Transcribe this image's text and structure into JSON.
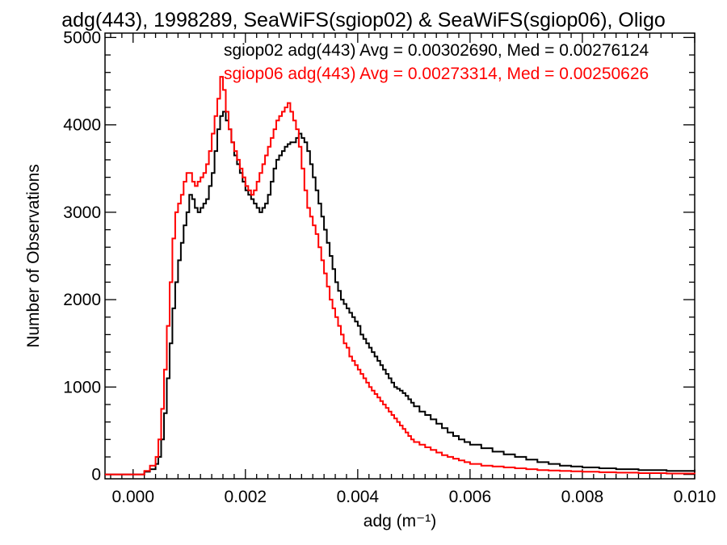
{
  "chart_data": {
    "type": "line",
    "title": "adg(443), 1998289, SeaWiFS(sgiop02) & SeaWiFS(sgiop06), Oligo",
    "xlabel": "adg (m⁻¹)",
    "ylabel": "Number of Observations",
    "xlim": [
      -0.0005,
      0.01
    ],
    "ylim": [
      -50,
      5050
    ],
    "xticks": [
      0.0,
      0.002,
      0.004,
      0.006,
      0.008,
      0.01
    ],
    "xtick_labels": [
      "0.000",
      "0.002",
      "0.004",
      "0.006",
      "0.008",
      "0.010"
    ],
    "yticks": [
      0,
      1000,
      2000,
      3000,
      4000,
      5000
    ],
    "ytick_labels": [
      "0",
      "1000",
      "2000",
      "3000",
      "4000",
      "5000"
    ],
    "grid": false,
    "legend_placement": "top-right",
    "series": [
      {
        "legend": "sgiop02 adg(443) Avg = 0.00302690, Med = 0.00276124",
        "color": "#000000",
        "step": true,
        "x": [
          -0.0005,
          0.0,
          0.0002,
          0.0003,
          0.0004,
          0.00045,
          0.0005,
          0.00055,
          0.0006,
          0.00065,
          0.0007,
          0.00075,
          0.0008,
          0.00085,
          0.0009,
          0.00095,
          0.001,
          0.00105,
          0.0011,
          0.00115,
          0.0012,
          0.00125,
          0.0013,
          0.00135,
          0.0014,
          0.00145,
          0.0015,
          0.00155,
          0.0016,
          0.00165,
          0.0017,
          0.00175,
          0.0018,
          0.00185,
          0.0019,
          0.00195,
          0.002,
          0.00205,
          0.0021,
          0.00215,
          0.0022,
          0.00225,
          0.0023,
          0.00235,
          0.0024,
          0.00245,
          0.0025,
          0.00255,
          0.0026,
          0.00265,
          0.0027,
          0.00275,
          0.0028,
          0.00285,
          0.0029,
          0.00295,
          0.003,
          0.00305,
          0.0031,
          0.00315,
          0.0032,
          0.00325,
          0.0033,
          0.00335,
          0.0034,
          0.00345,
          0.0035,
          0.00355,
          0.0036,
          0.00365,
          0.0037,
          0.00375,
          0.0038,
          0.00385,
          0.0039,
          0.00395,
          0.004,
          0.00405,
          0.0041,
          0.00415,
          0.0042,
          0.00425,
          0.0043,
          0.00435,
          0.0044,
          0.00445,
          0.0045,
          0.00455,
          0.0046,
          0.00465,
          0.0047,
          0.00475,
          0.0048,
          0.00485,
          0.0049,
          0.00495,
          0.005,
          0.0051,
          0.0052,
          0.0053,
          0.0054,
          0.0055,
          0.0056,
          0.0057,
          0.0058,
          0.0059,
          0.006,
          0.0062,
          0.0064,
          0.0066,
          0.0068,
          0.007,
          0.0072,
          0.0074,
          0.0076,
          0.0078,
          0.008,
          0.0083,
          0.0086,
          0.009,
          0.0095,
          0.01
        ],
        "y": [
          0,
          0,
          30,
          60,
          120,
          200,
          400,
          700,
          1100,
          1500,
          1900,
          2200,
          2450,
          2650,
          2850,
          3000,
          3200,
          3150,
          3050,
          3000,
          3050,
          3100,
          3150,
          3300,
          3450,
          3700,
          3950,
          4100,
          4150,
          4050,
          3950,
          3800,
          3650,
          3550,
          3450,
          3350,
          3250,
          3200,
          3150,
          3100,
          3050,
          3000,
          3050,
          3100,
          3200,
          3350,
          3500,
          3600,
          3650,
          3700,
          3750,
          3780,
          3800,
          3800,
          3850,
          3900,
          3850,
          3800,
          3700,
          3550,
          3400,
          3250,
          3100,
          2950,
          2800,
          2650,
          2500,
          2350,
          2200,
          2100,
          2000,
          1950,
          1900,
          1850,
          1800,
          1750,
          1700,
          1600,
          1550,
          1500,
          1450,
          1400,
          1350,
          1300,
          1250,
          1200,
          1150,
          1100,
          1050,
          1000,
          980,
          960,
          930,
          900,
          860,
          820,
          780,
          720,
          680,
          630,
          580,
          530,
          480,
          440,
          400,
          370,
          340,
          300,
          260,
          230,
          200,
          170,
          140,
          120,
          100,
          90,
          80,
          70,
          60,
          50,
          40,
          30
        ]
      },
      {
        "legend": "sgiop06 adg(443) Avg = 0.00273314, Med = 0.00250626",
        "color": "#ff0000",
        "step": true,
        "x": [
          -0.0005,
          0.0,
          0.0002,
          0.0003,
          0.0004,
          0.00045,
          0.0005,
          0.00055,
          0.0006,
          0.00065,
          0.0007,
          0.00075,
          0.0008,
          0.00085,
          0.0009,
          0.00095,
          0.001,
          0.00105,
          0.0011,
          0.00115,
          0.0012,
          0.00125,
          0.0013,
          0.00135,
          0.0014,
          0.00145,
          0.0015,
          0.00155,
          0.0016,
          0.00165,
          0.0017,
          0.00175,
          0.0018,
          0.00185,
          0.0019,
          0.00195,
          0.002,
          0.00205,
          0.0021,
          0.00215,
          0.0022,
          0.00225,
          0.0023,
          0.00235,
          0.0024,
          0.00245,
          0.0025,
          0.00255,
          0.0026,
          0.00265,
          0.0027,
          0.00275,
          0.0028,
          0.00285,
          0.0029,
          0.00295,
          0.003,
          0.00305,
          0.0031,
          0.00315,
          0.0032,
          0.00325,
          0.0033,
          0.00335,
          0.0034,
          0.00345,
          0.0035,
          0.00355,
          0.0036,
          0.00365,
          0.0037,
          0.00375,
          0.0038,
          0.00385,
          0.0039,
          0.00395,
          0.004,
          0.00405,
          0.0041,
          0.00415,
          0.0042,
          0.00425,
          0.0043,
          0.00435,
          0.0044,
          0.00445,
          0.0045,
          0.00455,
          0.0046,
          0.00465,
          0.0047,
          0.00475,
          0.0048,
          0.00485,
          0.0049,
          0.00495,
          0.005,
          0.0051,
          0.0052,
          0.0053,
          0.0054,
          0.0055,
          0.0056,
          0.0057,
          0.0058,
          0.0059,
          0.006,
          0.0062,
          0.0064,
          0.0066,
          0.0068,
          0.007,
          0.0072,
          0.0074,
          0.0076,
          0.0078,
          0.008,
          0.0083,
          0.0086,
          0.009,
          0.0095,
          0.01
        ],
        "y": [
          0,
          0,
          40,
          100,
          200,
          400,
          750,
          1200,
          1700,
          2200,
          2700,
          3000,
          3100,
          3200,
          3350,
          3450,
          3450,
          3350,
          3300,
          3350,
          3400,
          3450,
          3550,
          3700,
          3900,
          4100,
          4300,
          4550,
          4400,
          4150,
          3950,
          3800,
          3700,
          3600,
          3500,
          3400,
          3300,
          3250,
          3200,
          3250,
          3350,
          3450,
          3550,
          3650,
          3750,
          3850,
          3950,
          4050,
          4100,
          4150,
          4200,
          4250,
          4150,
          4050,
          3950,
          3750,
          3500,
          3250,
          3050,
          2950,
          2850,
          2750,
          2600,
          2450,
          2300,
          2150,
          2000,
          1900,
          1800,
          1700,
          1600,
          1500,
          1450,
          1350,
          1300,
          1250,
          1200,
          1150,
          1100,
          1050,
          1000,
          960,
          920,
          880,
          840,
          800,
          760,
          720,
          680,
          640,
          600,
          560,
          520,
          480,
          440,
          400,
          370,
          340,
          310,
          280,
          250,
          220,
          200,
          180,
          160,
          140,
          120,
          100,
          90,
          80,
          70,
          60,
          50,
          45,
          40,
          35,
          30,
          25,
          20,
          15,
          10,
          5
        ]
      }
    ]
  }
}
